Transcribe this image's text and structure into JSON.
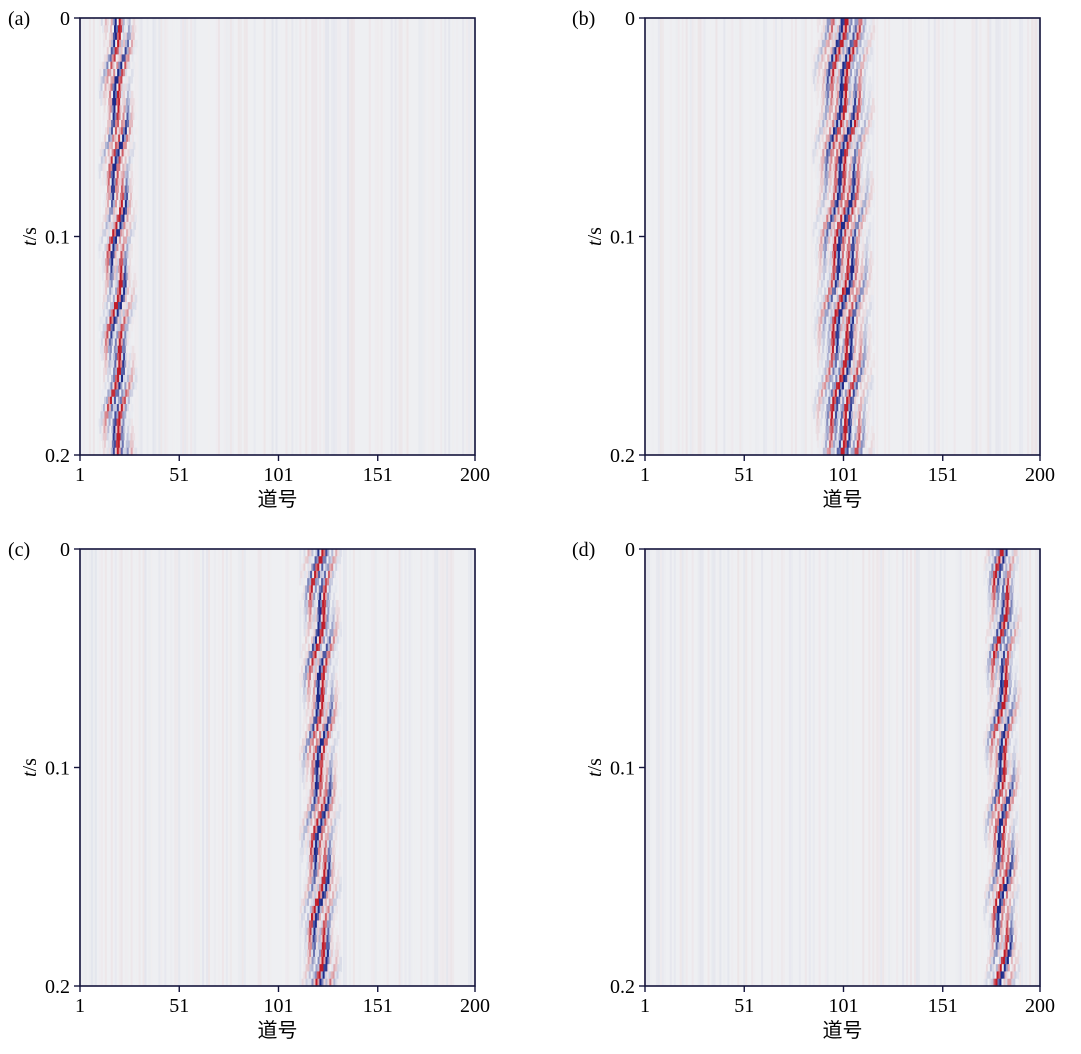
{
  "chart_data": [
    {
      "type": "heatmap",
      "panel_label": "(a)",
      "xlabel": "道号",
      "ylabel_italic": "t",
      "ylabel_rest": "/s",
      "x_ticks": [
        "1",
        "51",
        "101",
        "151",
        "200"
      ],
      "x_tick_values": [
        1,
        51,
        101,
        151,
        200
      ],
      "y_ticks": [
        "0",
        "0.1",
        "0.2"
      ],
      "y_tick_values": [
        0,
        0.1,
        0.2
      ],
      "xlim": [
        1,
        200
      ],
      "ylim": [
        0,
        0.2
      ],
      "event_center_trace": 20,
      "event_width_traces": 8
    },
    {
      "type": "heatmap",
      "panel_label": "(b)",
      "xlabel": "道号",
      "ylabel_italic": "t",
      "ylabel_rest": "/s",
      "x_ticks": [
        "1",
        "51",
        "101",
        "151",
        "200"
      ],
      "x_tick_values": [
        1,
        51,
        101,
        151,
        200
      ],
      "y_ticks": [
        "0",
        "0.1",
        "0.2"
      ],
      "y_tick_values": [
        0,
        0.1,
        0.2
      ],
      "xlim": [
        1,
        200
      ],
      "ylim": [
        0,
        0.2
      ],
      "event_center_trace": 101,
      "event_width_traces": 14
    },
    {
      "type": "heatmap",
      "panel_label": "(c)",
      "xlabel": "道号",
      "ylabel_italic": "t",
      "ylabel_rest": "/s",
      "x_ticks": [
        "1",
        "51",
        "101",
        "151",
        "200"
      ],
      "x_tick_values": [
        1,
        51,
        101,
        151,
        200
      ],
      "y_ticks": [
        "0",
        "0.1",
        "0.2"
      ],
      "y_tick_values": [
        0,
        0.1,
        0.2
      ],
      "xlim": [
        1,
        200
      ],
      "ylim": [
        0,
        0.2
      ],
      "event_center_trace": 122,
      "event_width_traces": 9
    },
    {
      "type": "heatmap",
      "panel_label": "(d)",
      "xlabel": "道号",
      "ylabel_italic": "t",
      "ylabel_rest": "/s",
      "x_ticks": [
        "1",
        "51",
        "101",
        "151",
        "200"
      ],
      "x_tick_values": [
        1,
        51,
        101,
        151,
        200
      ],
      "y_ticks": [
        "0",
        "0.1",
        "0.2"
      ],
      "y_tick_values": [
        0,
        0.1,
        0.2
      ],
      "xlim": [
        1,
        200
      ],
      "ylim": [
        0,
        0.2
      ],
      "event_center_trace": 181,
      "event_width_traces": 8
    }
  ],
  "colors": {
    "background": "#eeeff2",
    "positive": "#c01c28",
    "negative": "#1c2a8a",
    "axis": "#14143c"
  }
}
